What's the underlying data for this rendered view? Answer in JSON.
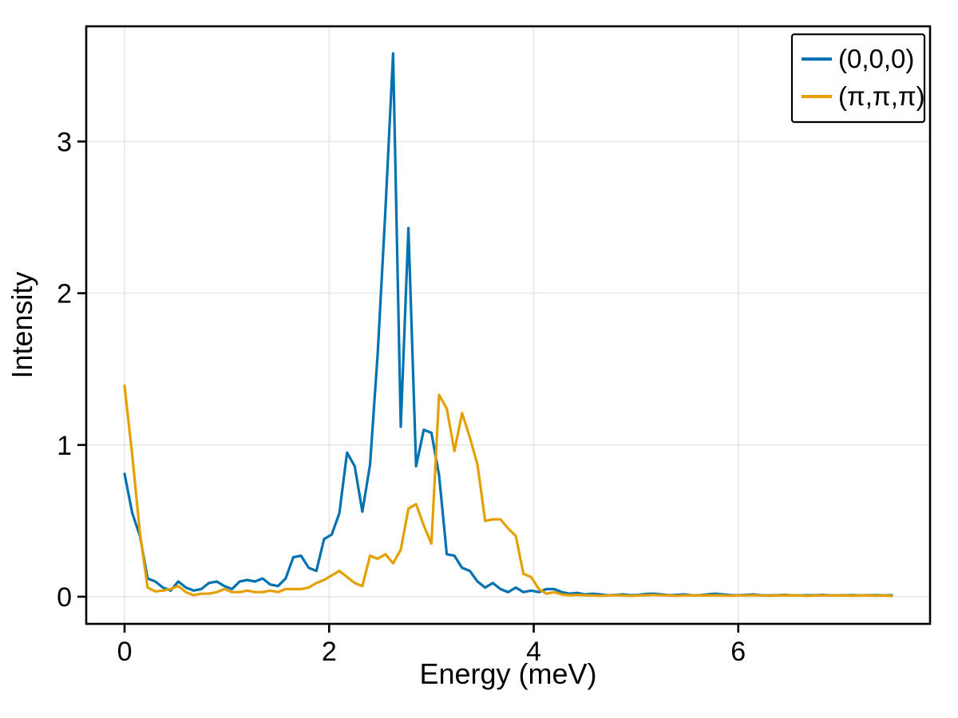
{
  "figure": {
    "background": "#ffffff"
  },
  "chart_data": {
    "type": "line",
    "title": "",
    "xlabel": "Energy (meV)",
    "ylabel": "Intensity",
    "xlim": [
      -0.375,
      7.875
    ],
    "ylim": [
      -0.179,
      3.759
    ],
    "xticks": [
      0,
      2,
      4,
      6
    ],
    "yticks": [
      0,
      1,
      2,
      3
    ],
    "grid": true,
    "grid_color": "#e6e6e6",
    "spine_color": "#000000",
    "legend_position": "top-right",
    "x_start": 0,
    "x_step": 0.075,
    "series": [
      {
        "name": "(0,0,0)",
        "color": "#0072B2",
        "values": [
          0.81,
          0.55,
          0.4,
          0.12,
          0.1,
          0.06,
          0.04,
          0.1,
          0.06,
          0.04,
          0.05,
          0.09,
          0.1,
          0.07,
          0.05,
          0.1,
          0.11,
          0.1,
          0.12,
          0.08,
          0.07,
          0.12,
          0.26,
          0.27,
          0.19,
          0.17,
          0.38,
          0.41,
          0.55,
          0.95,
          0.86,
          0.56,
          0.87,
          1.6,
          2.55,
          3.58,
          1.12,
          2.43,
          0.86,
          1.1,
          1.08,
          0.8,
          0.28,
          0.27,
          0.19,
          0.17,
          0.1,
          0.06,
          0.09,
          0.05,
          0.03,
          0.06,
          0.03,
          0.04,
          0.03,
          0.05,
          0.05,
          0.03,
          0.02,
          0.025,
          0.015,
          0.02,
          0.015,
          0.01,
          0.012,
          0.015,
          0.01,
          0.012,
          0.018,
          0.02,
          0.015,
          0.01,
          0.012,
          0.015,
          0.01,
          0.01,
          0.015,
          0.02,
          0.015,
          0.01,
          0.01,
          0.012,
          0.015,
          0.01,
          0.008,
          0.01,
          0.012,
          0.01,
          0.008,
          0.01,
          0.01,
          0.012,
          0.01,
          0.008,
          0.01,
          0.01,
          0.008,
          0.01,
          0.01,
          0.008,
          0.01
        ]
      },
      {
        "name": "(π,π,π)",
        "color": "#E69F00",
        "values": [
          1.39,
          0.93,
          0.42,
          0.06,
          0.035,
          0.04,
          0.05,
          0.07,
          0.03,
          0.01,
          0.02,
          0.02,
          0.03,
          0.05,
          0.03,
          0.03,
          0.04,
          0.03,
          0.03,
          0.04,
          0.03,
          0.05,
          0.05,
          0.05,
          0.06,
          0.09,
          0.11,
          0.14,
          0.17,
          0.13,
          0.09,
          0.07,
          0.27,
          0.25,
          0.28,
          0.22,
          0.31,
          0.58,
          0.61,
          0.47,
          0.35,
          1.33,
          1.24,
          0.96,
          1.21,
          1.05,
          0.87,
          0.5,
          0.51,
          0.51,
          0.45,
          0.4,
          0.15,
          0.13,
          0.05,
          0.02,
          0.03,
          0.015,
          0.01,
          0.012,
          0.01,
          0.008,
          0.006,
          0.008,
          0.01,
          0.008,
          0.006,
          0.008,
          0.01,
          0.012,
          0.01,
          0.008,
          0.006,
          0.008,
          0.01,
          0.008,
          0.008,
          0.01,
          0.008,
          0.006,
          0.008,
          0.008,
          0.01,
          0.008,
          0.006,
          0.008,
          0.008,
          0.01,
          0.008,
          0.006,
          0.008,
          0.008,
          0.01,
          0.008,
          0.008,
          0.006,
          0.008,
          0.008,
          0.006,
          0.008,
          0.005
        ]
      }
    ]
  }
}
